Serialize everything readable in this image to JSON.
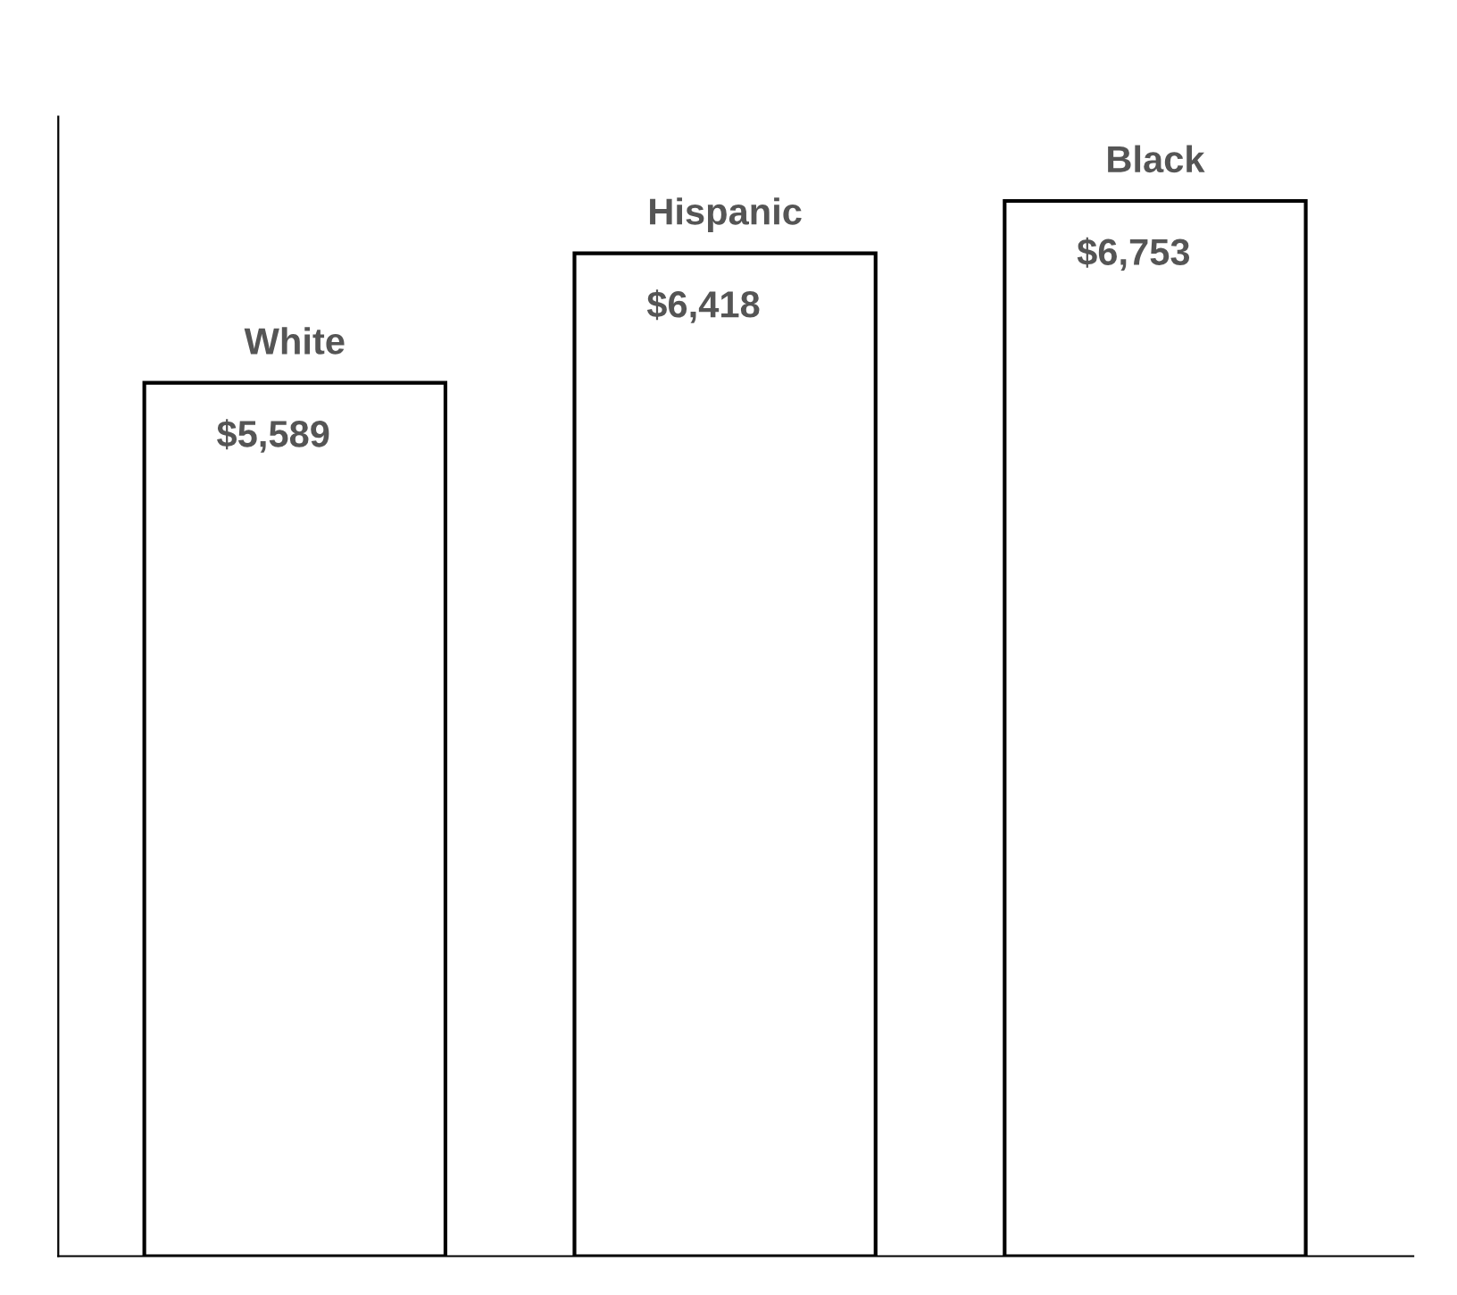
{
  "chart_data": {
    "type": "bar",
    "categories": [
      "White",
      "Hispanic",
      "Black"
    ],
    "values": [
      5589,
      6418,
      6753
    ],
    "color": "#ffffff",
    "value_labels": [
      "$5,589",
      "$6,418",
      "$6,753"
    ],
    "tick_labels": false,
    "grid": false,
    "legend": false
  }
}
